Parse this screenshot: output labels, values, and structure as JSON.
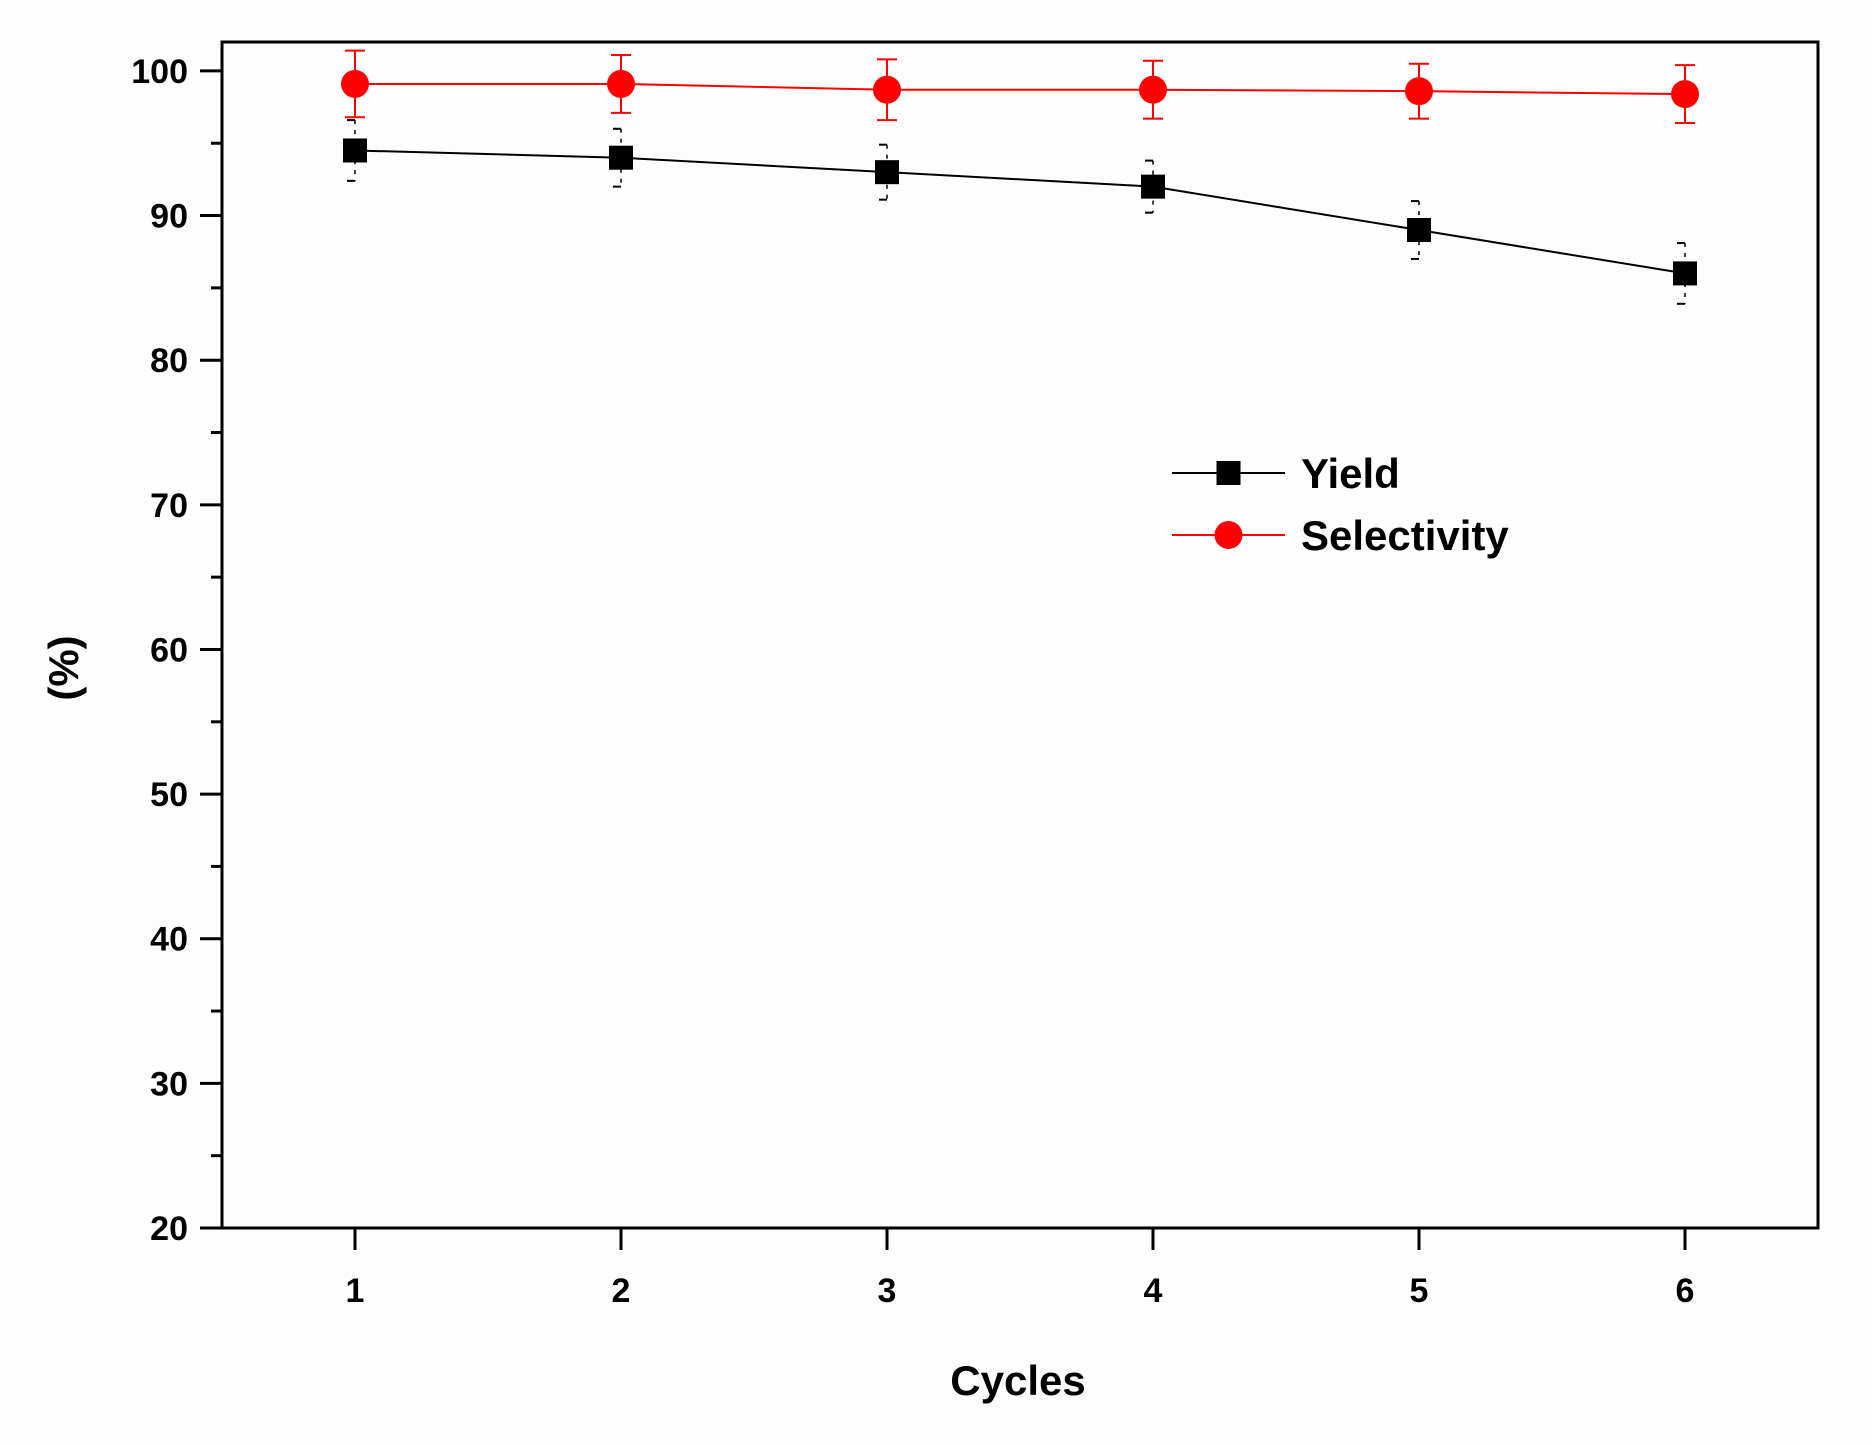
{
  "chart_data": {
    "type": "line",
    "title": "",
    "xlabel": "Cycles",
    "ylabel": "(%)",
    "x": [
      1,
      2,
      3,
      4,
      5,
      6
    ],
    "xlim": [
      0.5,
      6.5
    ],
    "ylim": [
      20,
      102
    ],
    "yticks": [
      20,
      30,
      40,
      50,
      60,
      70,
      80,
      90,
      100
    ],
    "grid": false,
    "legend_position": "right-middle",
    "series": [
      {
        "name": "Yield",
        "color": "#000000",
        "marker": "square",
        "values": [
          94.5,
          94.0,
          93.0,
          92.0,
          89.0,
          86.0
        ],
        "errors": [
          2.1,
          2.0,
          1.9,
          1.8,
          2.0,
          2.1
        ]
      },
      {
        "name": "Selectivity",
        "color": "#ff0000",
        "marker": "circle",
        "values": [
          99.1,
          99.1,
          98.7,
          98.7,
          98.6,
          98.4
        ],
        "errors": [
          2.3,
          2.0,
          2.1,
          2.0,
          1.9,
          2.0
        ]
      }
    ]
  }
}
